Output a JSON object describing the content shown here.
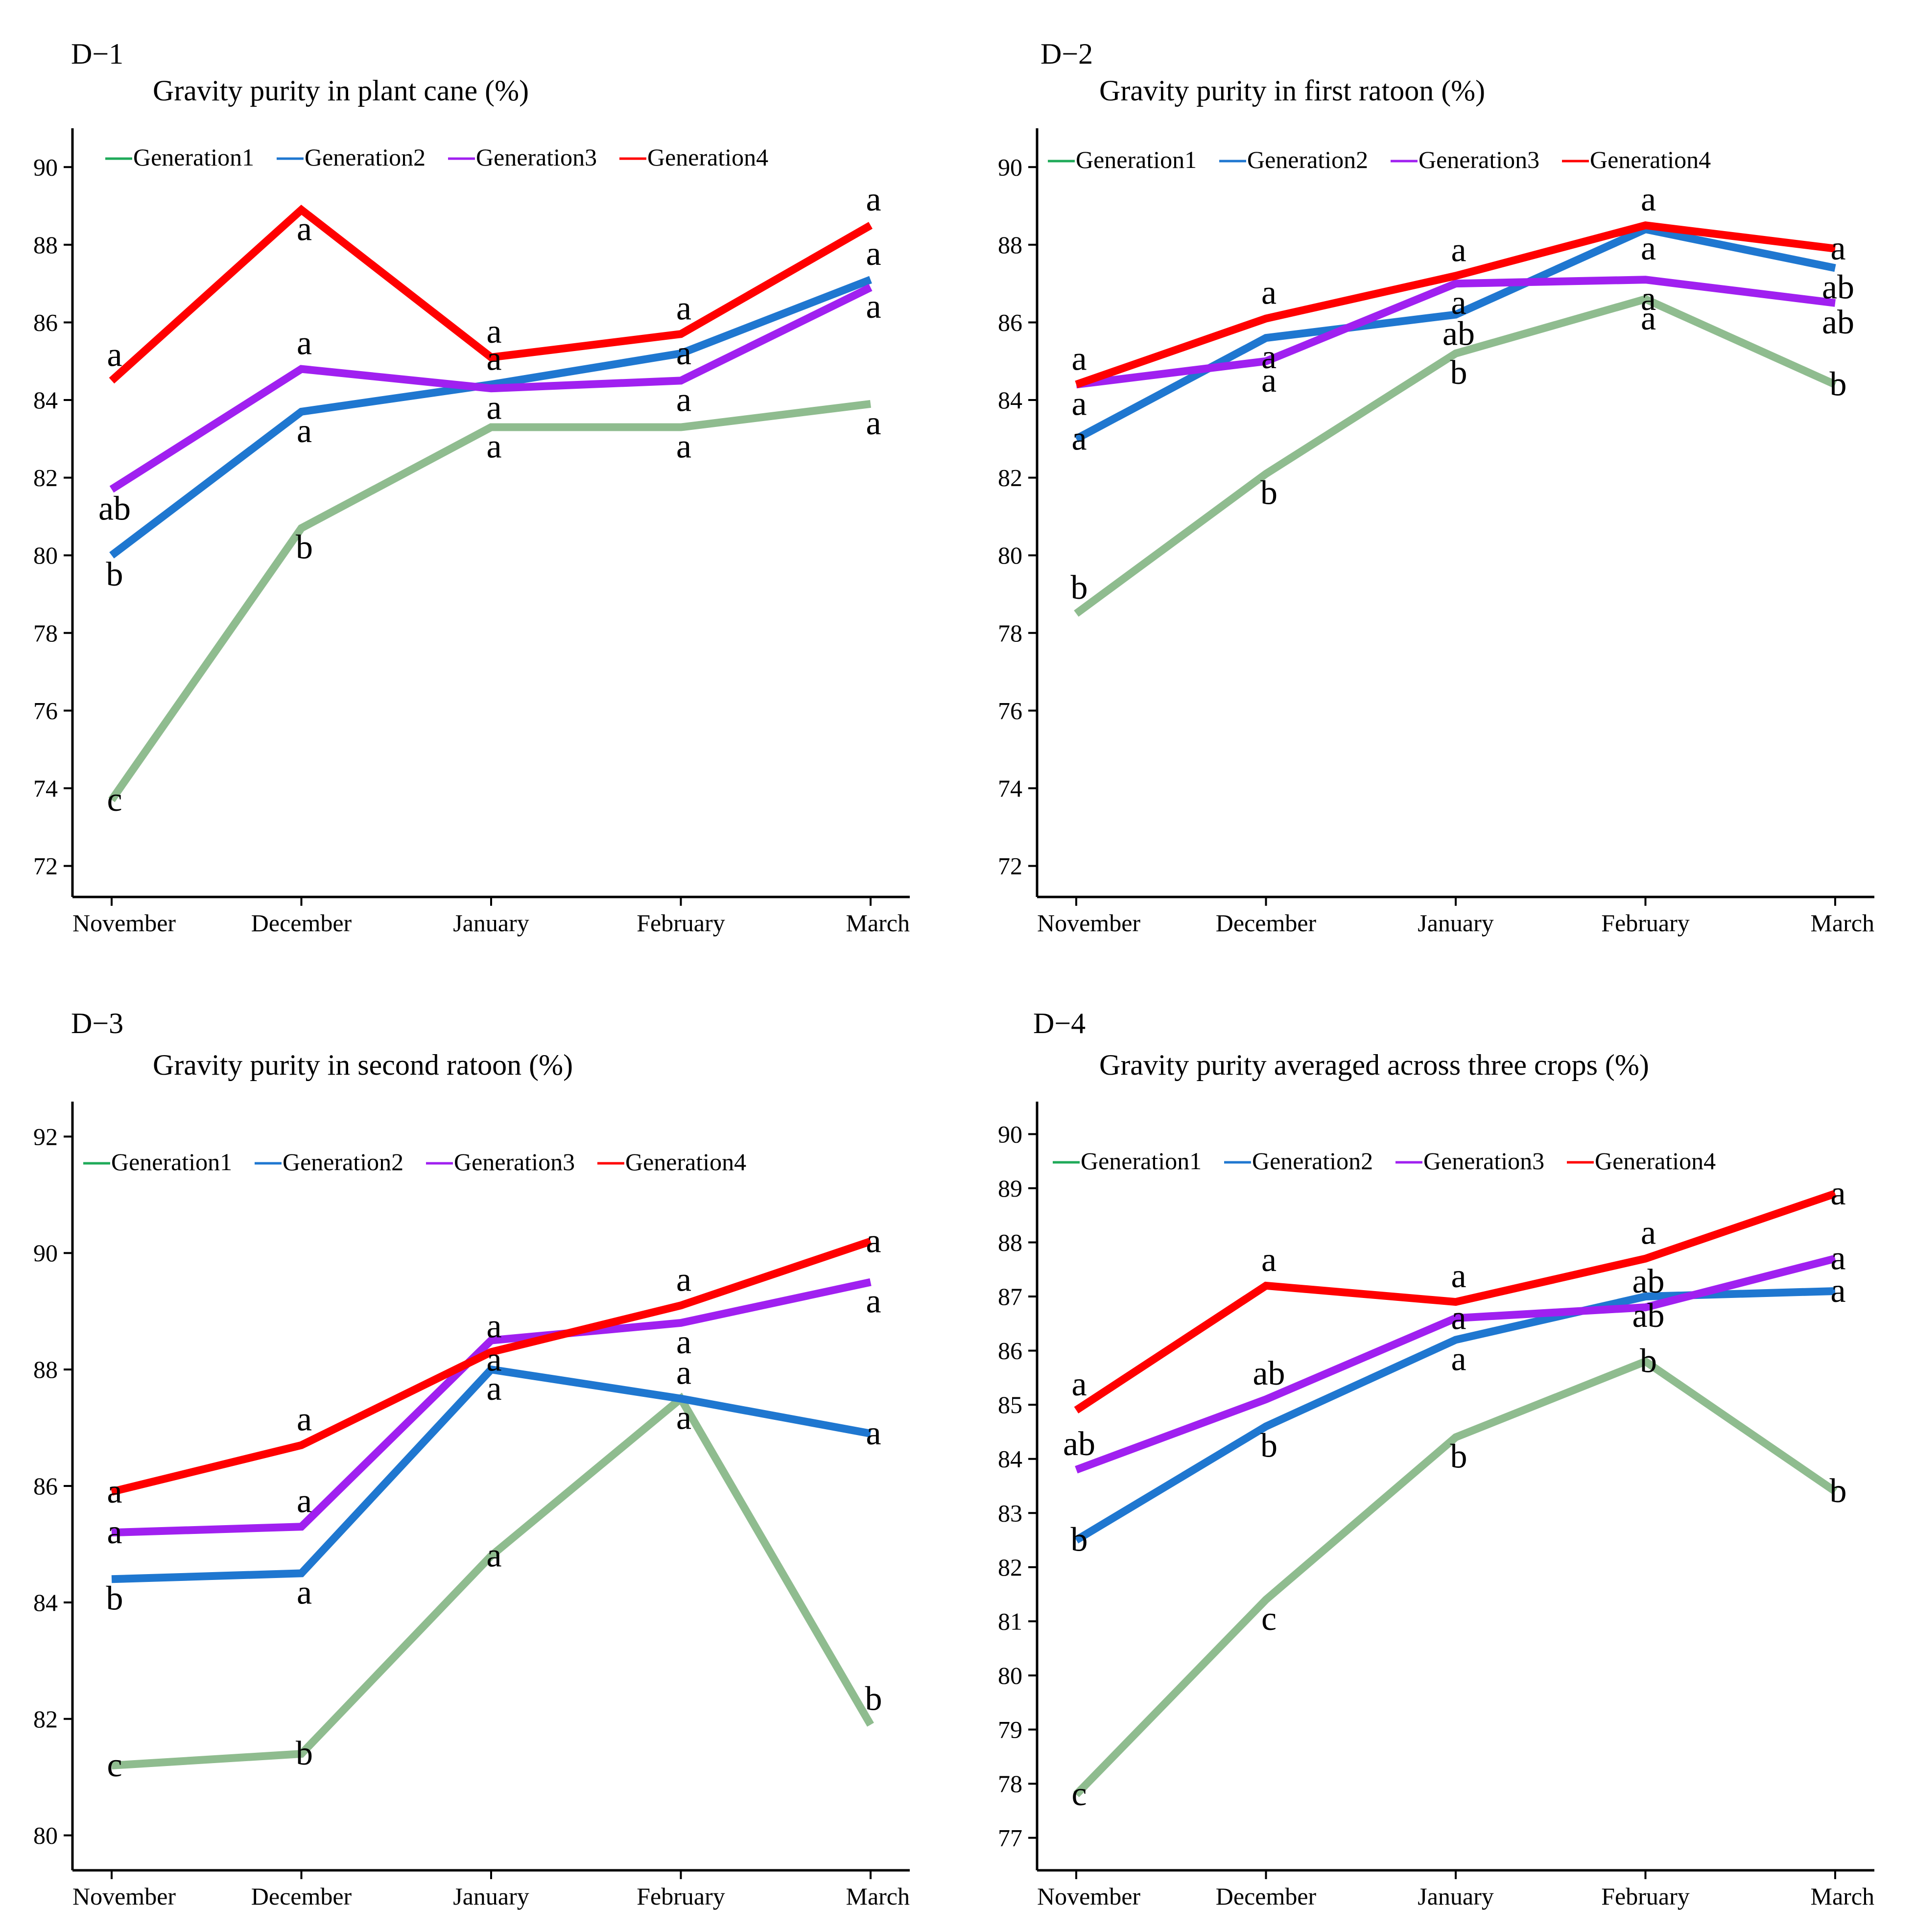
{
  "colors": {
    "Generation1": "#8fbc8f",
    "Generation2": "#1f77d0",
    "Generation3": "#a020f0",
    "Generation4": "#ff0000",
    "legend_Generation1": "#1faa59",
    "legend_Generation2": "#1f77d0",
    "legend_Generation3": "#a020f0",
    "legend_Generation4": "#ff0000"
  },
  "chart_data": [
    {
      "id": "D−1",
      "type": "line",
      "title": "Gravity purity in plant cane (%)",
      "categories": [
        "November",
        "December",
        "January",
        "February",
        "March"
      ],
      "ylim": [
        71.2,
        91
      ],
      "yticks": [
        72,
        74,
        76,
        78,
        80,
        82,
        84,
        86,
        88,
        90
      ],
      "legend_position": "top-left",
      "series": [
        {
          "name": "Generation1",
          "values": [
            73.7,
            80.7,
            83.3,
            83.3,
            83.9
          ],
          "letters": [
            "c",
            "b",
            "a",
            "a",
            "a"
          ],
          "letter_pos": [
            "on",
            "below",
            "below",
            "below",
            "below"
          ]
        },
        {
          "name": "Generation2",
          "values": [
            80.0,
            83.7,
            84.4,
            85.2,
            87.1
          ],
          "letters": [
            "b",
            "a",
            "a",
            "a",
            "a"
          ],
          "letter_pos": [
            "below",
            "below",
            "above",
            "on",
            "above"
          ]
        },
        {
          "name": "Generation3",
          "values": [
            81.7,
            84.8,
            84.3,
            84.5,
            86.9
          ],
          "letters": [
            "ab",
            "a",
            "a",
            "a",
            "a"
          ],
          "letter_pos": [
            "below",
            "above",
            "below",
            "below",
            "below"
          ]
        },
        {
          "name": "Generation4",
          "values": [
            84.5,
            88.9,
            85.1,
            85.7,
            88.5
          ],
          "letters": [
            "a",
            "a",
            "a",
            "a",
            "a"
          ],
          "letter_pos": [
            "above",
            "below",
            "above",
            "above",
            "above"
          ]
        }
      ]
    },
    {
      "id": "D−2",
      "type": "line",
      "title": "Gravity purity in first ratoon (%)",
      "categories": [
        "November",
        "December",
        "January",
        "February",
        "March"
      ],
      "ylim": [
        71.2,
        91
      ],
      "yticks": [
        72,
        74,
        76,
        78,
        80,
        82,
        84,
        86,
        88,
        90
      ],
      "legend_position": "top-left",
      "series": [
        {
          "name": "Generation1",
          "values": [
            78.5,
            82.1,
            85.2,
            86.6,
            84.4
          ],
          "letters": [
            "b",
            "b",
            "b",
            "a",
            "b"
          ],
          "letter_pos": [
            "above",
            "below",
            "below",
            "below",
            "on"
          ]
        },
        {
          "name": "Generation2",
          "values": [
            83.0,
            85.6,
            86.2,
            88.4,
            87.4
          ],
          "letters": [
            "a",
            "a",
            "ab",
            "a",
            "ab"
          ],
          "letter_pos": [
            "on",
            "below",
            "below",
            "below",
            "below"
          ]
        },
        {
          "name": "Generation3",
          "values": [
            84.4,
            85.0,
            87.0,
            87.1,
            86.5
          ],
          "letters": [
            "a",
            "a",
            "a",
            "a",
            "ab"
          ],
          "letter_pos": [
            "below",
            "below",
            "below",
            "below",
            "below"
          ]
        },
        {
          "name": "Generation4",
          "values": [
            84.4,
            86.1,
            87.2,
            88.5,
            87.9
          ],
          "letters": [
            "a",
            "a",
            "a",
            "a",
            "a"
          ],
          "letter_pos": [
            "above",
            "above",
            "above",
            "above",
            "on"
          ]
        }
      ]
    },
    {
      "id": "D−3",
      "type": "line",
      "title": "Gravity purity in second ratoon (%)",
      "categories": [
        "November",
        "December",
        "January",
        "February",
        "March"
      ],
      "ylim": [
        79.4,
        92.6
      ],
      "yticks": [
        80,
        82,
        84,
        86,
        88,
        90,
        92
      ],
      "legend_position": "top-left",
      "series": [
        {
          "name": "Generation1",
          "values": [
            81.2,
            81.4,
            84.8,
            87.5,
            81.9
          ],
          "letters": [
            "c",
            "b",
            "a",
            "a",
            "b"
          ],
          "letter_pos": [
            "on",
            "on",
            "on",
            "below",
            "above"
          ]
        },
        {
          "name": "Generation2",
          "values": [
            84.4,
            84.5,
            88.0,
            87.5,
            86.9
          ],
          "letters": [
            "b",
            "a",
            "a",
            "a",
            "a"
          ],
          "letter_pos": [
            "below",
            "below",
            "below",
            "above",
            "on"
          ]
        },
        {
          "name": "Generation3",
          "values": [
            85.2,
            85.3,
            88.5,
            88.8,
            89.5
          ],
          "letters": [
            "a",
            "a",
            "a",
            "a",
            "a"
          ],
          "letter_pos": [
            "on",
            "above",
            "below",
            "below",
            "below"
          ]
        },
        {
          "name": "Generation4",
          "values": [
            85.9,
            86.7,
            88.3,
            89.1,
            90.2
          ],
          "letters": [
            "a",
            "a",
            "a",
            "a",
            "a"
          ],
          "letter_pos": [
            "on",
            "above",
            "above",
            "above",
            "on"
          ]
        }
      ]
    },
    {
      "id": "D−4",
      "type": "line",
      "title": "Gravity purity averaged across three crops (%)",
      "categories": [
        "November",
        "December",
        "January",
        "February",
        "March"
      ],
      "ylim": [
        76.4,
        90.6
      ],
      "yticks": [
        77,
        78,
        79,
        80,
        81,
        82,
        83,
        84,
        85,
        86,
        87,
        88,
        89,
        90
      ],
      "legend_position": "top-left",
      "series": [
        {
          "name": "Generation1",
          "values": [
            77.8,
            81.4,
            84.4,
            85.8,
            83.4
          ],
          "letters": [
            "c",
            "c",
            "b",
            "b",
            "b"
          ],
          "letter_pos": [
            "on",
            "below",
            "below",
            "on",
            "on"
          ]
        },
        {
          "name": "Generation2",
          "values": [
            82.5,
            84.6,
            86.2,
            87.0,
            87.1
          ],
          "letters": [
            "b",
            "b",
            "a",
            "ab",
            "a"
          ],
          "letter_pos": [
            "on",
            "below",
            "below",
            "below",
            "on"
          ]
        },
        {
          "name": "Generation3",
          "values": [
            83.8,
            85.1,
            86.6,
            86.8,
            87.7
          ],
          "letters": [
            "ab",
            "ab",
            "a",
            "ab",
            "a"
          ],
          "letter_pos": [
            "above",
            "above",
            "on",
            "above",
            "on"
          ]
        },
        {
          "name": "Generation4",
          "values": [
            84.9,
            87.2,
            86.9,
            87.7,
            88.9
          ],
          "letters": [
            "a",
            "a",
            "a",
            "a",
            "a"
          ],
          "letter_pos": [
            "above",
            "above",
            "above",
            "above",
            "on"
          ]
        }
      ]
    }
  ]
}
